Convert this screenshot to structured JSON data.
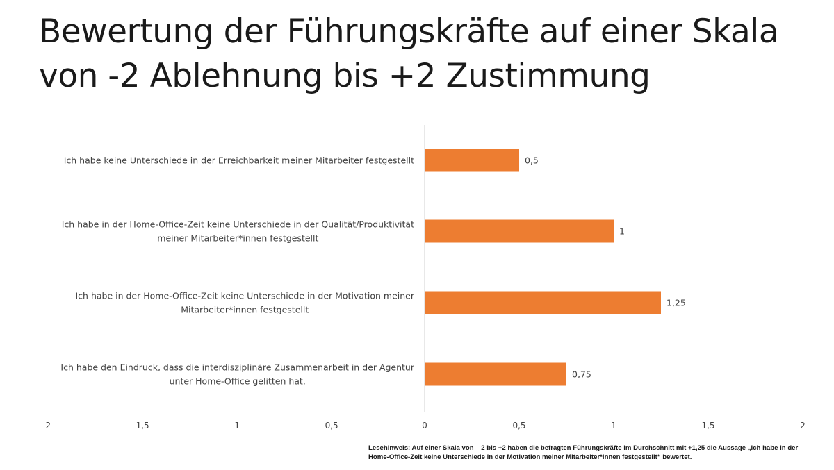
{
  "slide": {
    "title_line1": "Bewertung der Führungskräfte auf einer Skala",
    "title_line2": "von -2 Ablehnung bis +2 Zustimmung",
    "footnote": "Lesehinweis: Auf einer Skala von – 2 bis +2 haben die befragten Führungskräfte im Durchschnitt mit +1,25 die Aussage „Ich habe in der Home-Office-Zeit keine Unterschiede in der Motivation meiner Mitarbeiter*innen festgestellt“ bewertet."
  },
  "colors": {
    "bar": "#ED7D31",
    "axis": "#D9D9D9",
    "text": "#404040"
  },
  "chart_data": {
    "type": "bar",
    "orientation": "horizontal",
    "categories": [
      [
        "Ich habe keine Unterschiede in der Erreichbarkeit meiner Mitarbeiter festgestellt"
      ],
      [
        "Ich habe in der Home-Office-Zeit keine Unterschiede in der Qualität/Produktivität",
        "meiner Mitarbeiter*innen festgestellt"
      ],
      [
        "Ich habe in der Home-Office-Zeit keine Unterschiede in der Motivation meiner",
        "Mitarbeiter*innen festgestellt"
      ],
      [
        "Ich habe den Eindruck, dass die interdisziplinäre Zusammenarbeit in der Agentur",
        "unter Home-Office gelitten hat."
      ]
    ],
    "values": [
      0.5,
      1,
      1.25,
      0.75
    ],
    "data_labels": [
      "0,5",
      "1",
      "1,25",
      "0,75"
    ],
    "xlim": [
      -2,
      2
    ],
    "ticks": [
      -2,
      -1.5,
      -1,
      -0.5,
      0,
      0.5,
      1,
      1.5,
      2
    ],
    "tick_labels": [
      "-2",
      "-1,5",
      "-1",
      "-0,5",
      "0",
      "0,5",
      "1",
      "1,5",
      "2"
    ],
    "grid": false,
    "legend": "none"
  }
}
